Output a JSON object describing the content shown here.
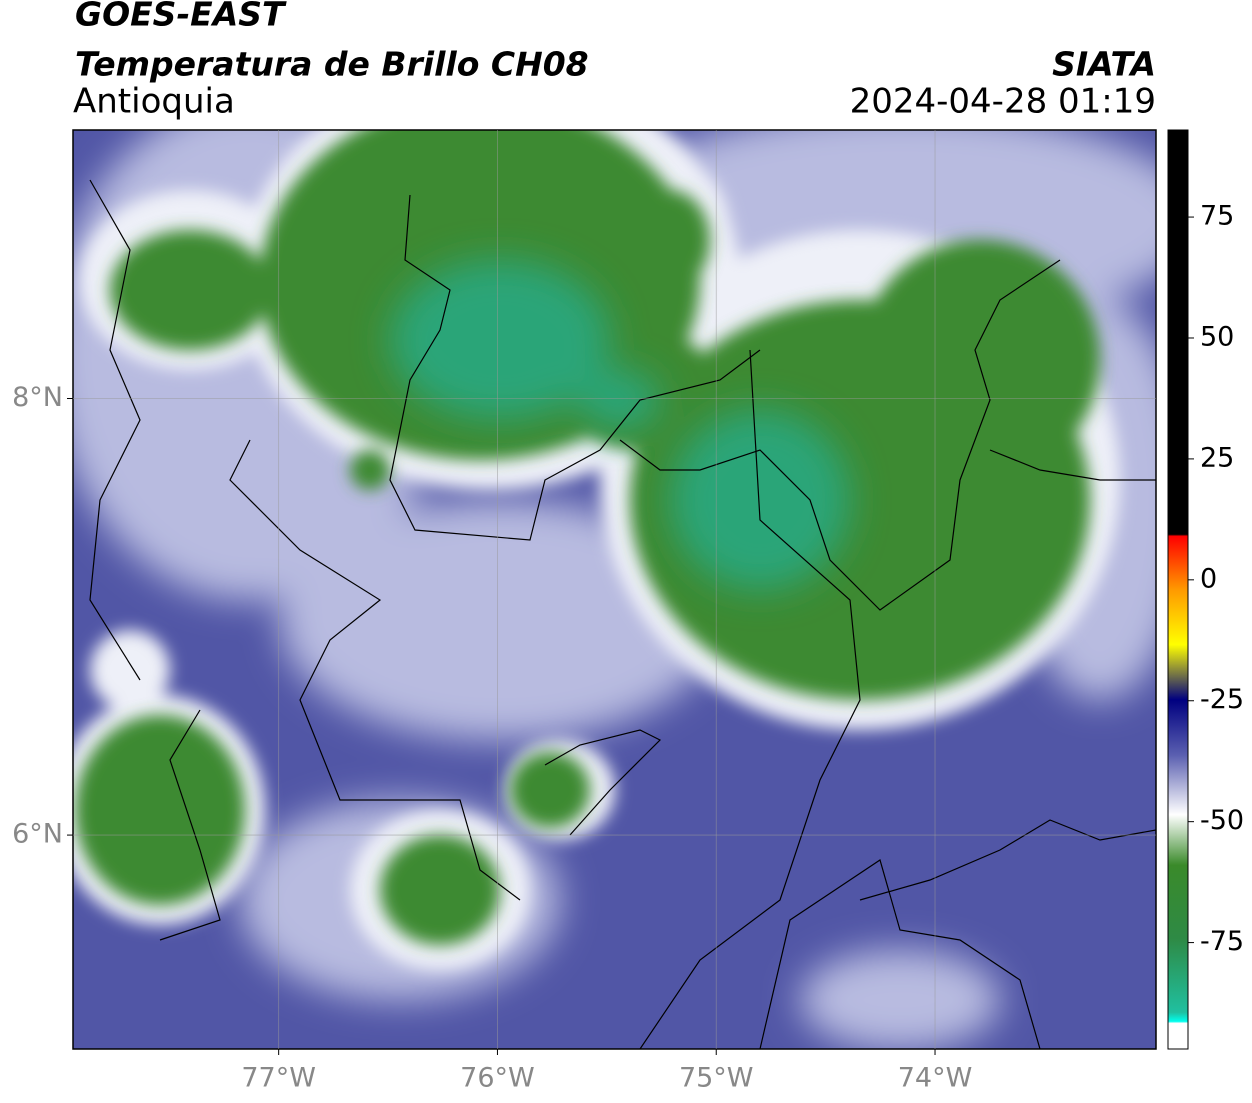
{
  "header": {
    "title": "GOES-EAST",
    "subtitle": "Temperatura de Brillo CH08",
    "region": "Antioquia",
    "source": "SIATA",
    "datetime": "2024-04-28 01:19"
  },
  "map": {
    "xlim": [
      -77.94,
      -72.99
    ],
    "ylim": [
      5.02,
      9.23
    ],
    "xticks": [
      {
        "value": -77,
        "label": "77°W"
      },
      {
        "value": -76,
        "label": "76°W"
      },
      {
        "value": -75,
        "label": "75°W"
      },
      {
        "value": -74,
        "label": "74°W"
      }
    ],
    "yticks": [
      {
        "value": 8,
        "label": "8°N"
      },
      {
        "value": 6,
        "label": "6°N"
      }
    ],
    "grid": true
  },
  "colorbar": {
    "lim": [
      -97,
      93
    ],
    "ticks": [
      75,
      50,
      25,
      0,
      -25,
      -50,
      -75
    ]
  }
}
